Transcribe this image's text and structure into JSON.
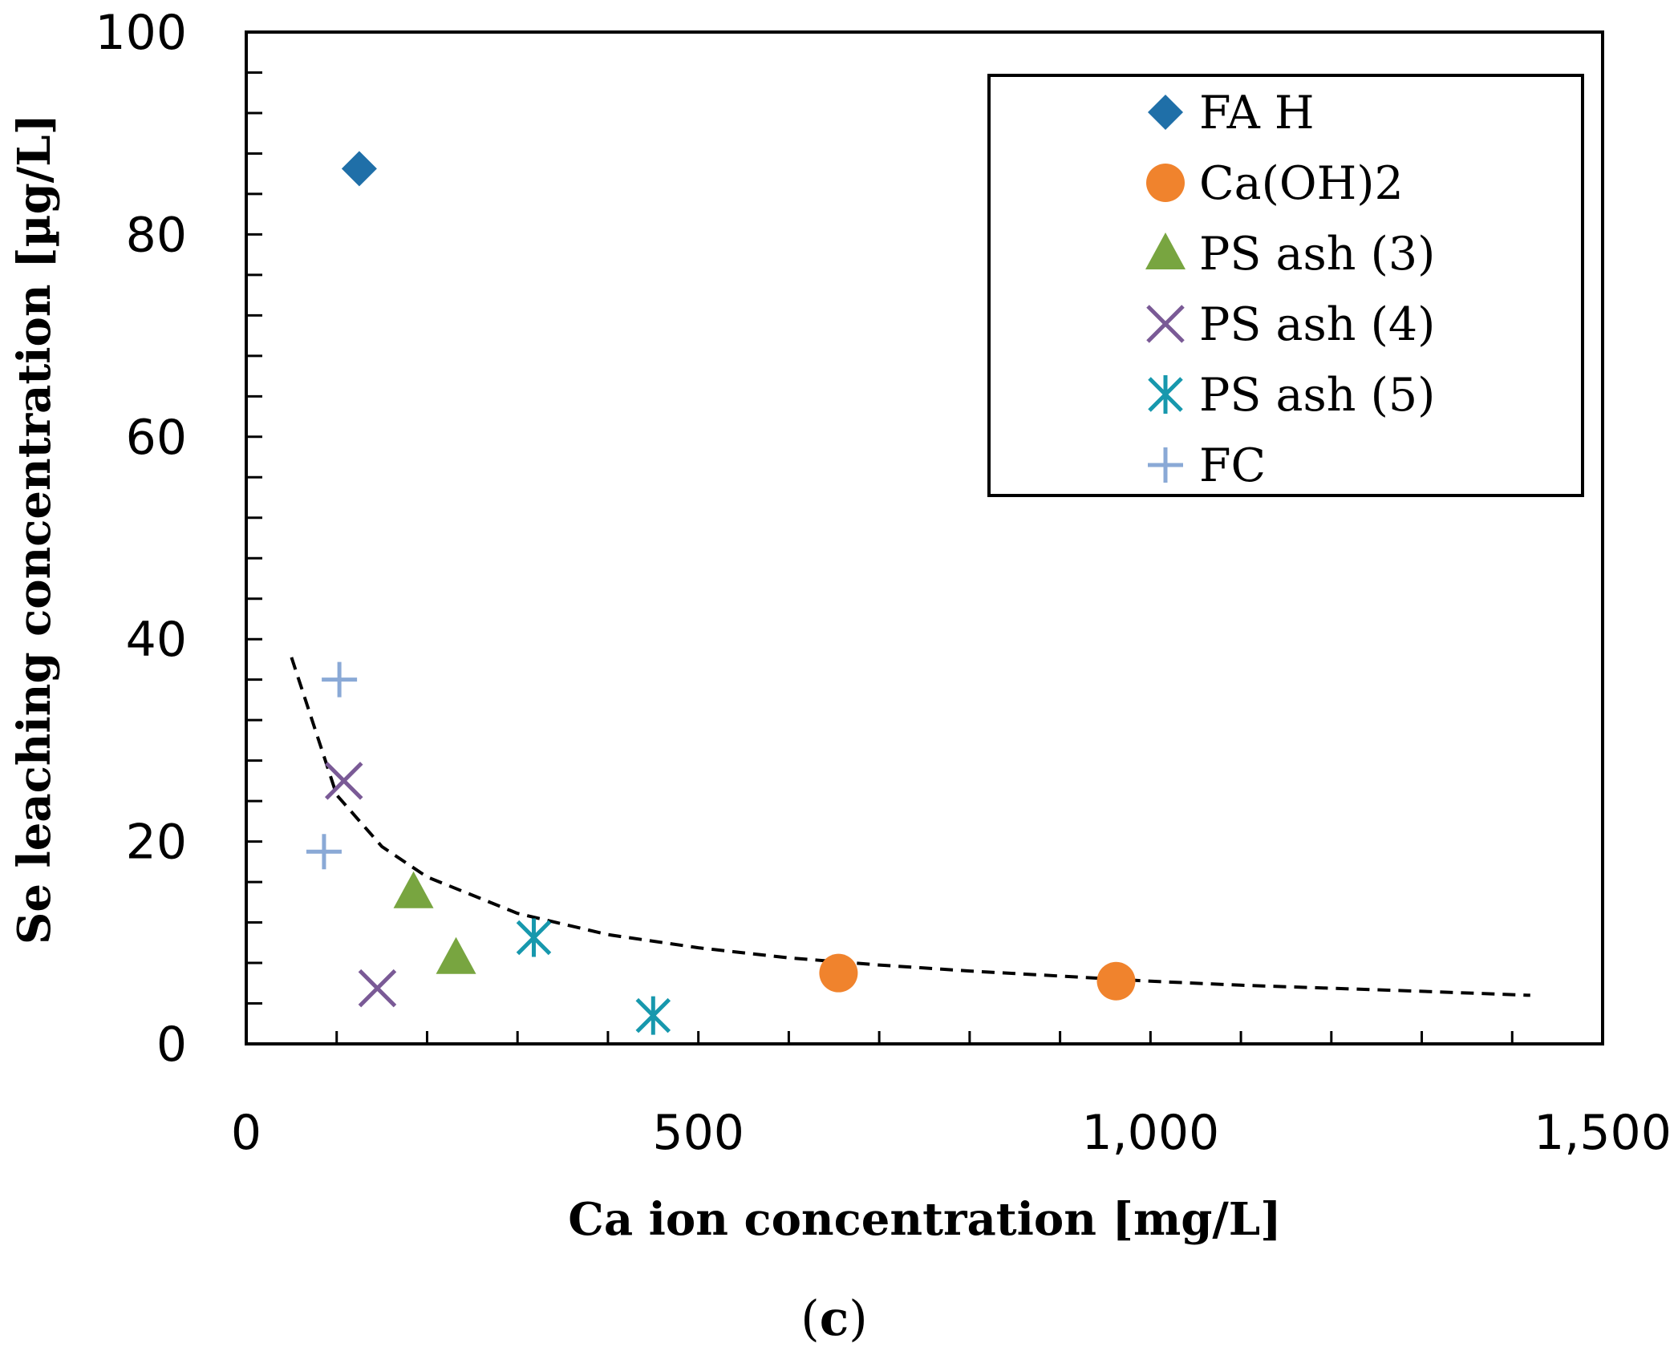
{
  "chart_data": {
    "type": "scatter",
    "xlabel": "Ca ion concentration   [mg/L]",
    "ylabel": "Se  leaching concentration  [µg/L]",
    "panel_label": "c",
    "xlim": [
      0,
      1500
    ],
    "ylim": [
      0,
      100
    ],
    "x_ticks": [
      0,
      500,
      1000,
      1500
    ],
    "x_tick_labels": [
      "0",
      "500",
      "1,000",
      "1,500"
    ],
    "y_ticks": [
      0,
      20,
      40,
      60,
      80,
      100
    ],
    "y_tick_labels": [
      "0",
      "20",
      "40",
      "60",
      "80",
      "100"
    ],
    "x_minor_step": 100,
    "y_minor_step": 4,
    "legend_position": "top-right",
    "series": [
      {
        "name": "FA H",
        "marker": "diamond",
        "color": "#1f6fa8",
        "points": [
          [
            125,
            86.5
          ]
        ]
      },
      {
        "name": "Ca(OH)2",
        "marker": "circle",
        "color": "#f0832d",
        "points": [
          [
            655,
            7
          ],
          [
            962,
            6.2
          ]
        ]
      },
      {
        "name": "PS ash (3)",
        "marker": "triangle",
        "color": "#78a540",
        "points": [
          [
            185,
            15
          ],
          [
            232,
            8.5
          ]
        ]
      },
      {
        "name": "PS ash (4)",
        "marker": "x",
        "color": "#7a5a96",
        "points": [
          [
            108,
            26
          ],
          [
            145,
            5.5
          ]
        ]
      },
      {
        "name": "PS ash (5)",
        "marker": "asterisk",
        "color": "#1798ad",
        "points": [
          [
            318,
            10.5
          ],
          [
            450,
            2.8
          ]
        ]
      },
      {
        "name": "FC",
        "marker": "plus",
        "color": "#8aa9d6",
        "points": [
          [
            103,
            36
          ],
          [
            86,
            19
          ]
        ]
      }
    ],
    "trendline": {
      "style": "dashed",
      "color": "#000000",
      "points": [
        [
          50,
          38.2
        ],
        [
          100,
          24.6
        ],
        [
          150,
          19.5
        ],
        [
          200,
          16.5
        ],
        [
          300,
          12.9
        ],
        [
          400,
          10.8
        ],
        [
          500,
          9.5
        ],
        [
          600,
          8.5
        ],
        [
          700,
          7.8
        ],
        [
          800,
          7.2
        ],
        [
          900,
          6.7
        ],
        [
          1000,
          6.2
        ],
        [
          1100,
          5.8
        ],
        [
          1200,
          5.5
        ],
        [
          1300,
          5.2
        ],
        [
          1420,
          4.8
        ]
      ]
    }
  }
}
